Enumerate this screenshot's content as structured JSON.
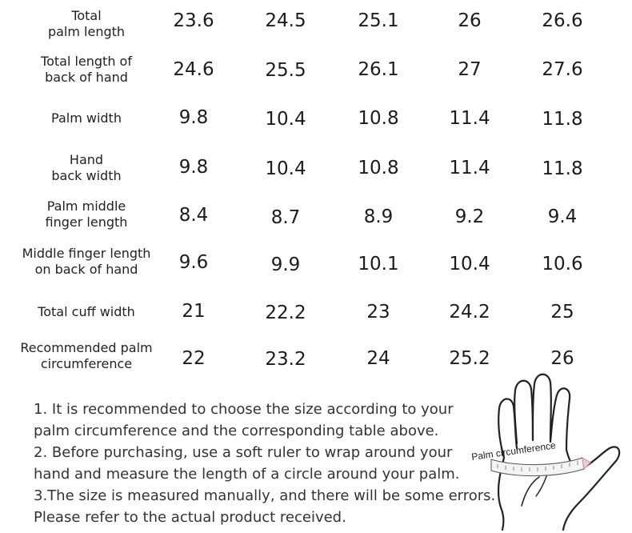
{
  "table": {
    "rows": [
      {
        "label": [
          "Total",
          "palm length"
        ],
        "values": [
          "23.6",
          "24.5",
          "25.1",
          "26",
          "26.6"
        ]
      },
      {
        "label": [
          "Total length of",
          "back of hand"
        ],
        "values": [
          "24.6",
          "25.5",
          "26.1",
          "27",
          "27.6"
        ]
      },
      {
        "label": [
          "Palm width"
        ],
        "values": [
          "9.8",
          "10.4",
          "10.8",
          "11.4",
          "11.8"
        ]
      },
      {
        "label": [
          "Hand",
          "back width"
        ],
        "values": [
          "9.8",
          "10.4",
          "10.8",
          "11.4",
          "11.8"
        ]
      },
      {
        "label": [
          "Palm middle",
          "finger length"
        ],
        "values": [
          "8.4",
          "8.7",
          "8.9",
          "9.2",
          "9.4"
        ]
      },
      {
        "label": [
          "Middle finger length",
          "on back of hand"
        ],
        "values": [
          "9.6",
          "9.9",
          "10.1",
          "10.4",
          "10.6"
        ]
      },
      {
        "label": [
          "Total cuff width"
        ],
        "values": [
          "21",
          "22.2",
          "23",
          "24.2",
          "25"
        ]
      },
      {
        "label": [
          "Recommended palm",
          "circumference"
        ],
        "values": [
          "22",
          "23.2",
          "24",
          "25.2",
          "26"
        ]
      }
    ]
  },
  "notes": [
    "1. It is recommended to choose the size according to your",
    "palm circumference and the corresponding table above.",
    "2. Before purchasing, use a soft ruler to wrap around your",
    "hand and measure the length of a circle around your palm.",
    "3.The size is measured manually, and there will be some errors.",
    "Please refer to the actual product received."
  ],
  "illustration": {
    "icon": "hand-measure-icon",
    "label": "Palm circumference"
  }
}
